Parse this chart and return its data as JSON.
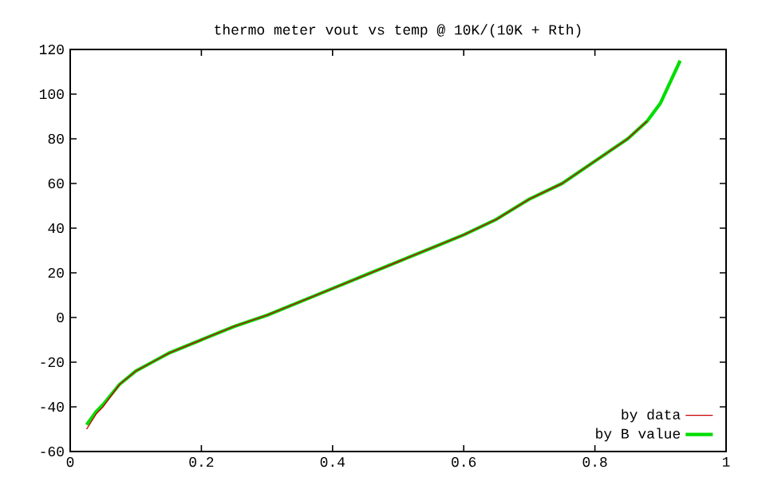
{
  "chart_data": {
    "type": "line",
    "title": "thermo meter vout vs temp @ 10K/(10K + Rth)",
    "xlim": [
      0,
      1
    ],
    "ylim": [
      -60,
      120
    ],
    "xticks": [
      0,
      0.2,
      0.4,
      0.6,
      0.8,
      1
    ],
    "yticks": [
      -60,
      -40,
      -20,
      0,
      20,
      40,
      60,
      80,
      100,
      120
    ],
    "legend": "bottom right",
    "line_style": "solid",
    "series": [
      {
        "name": "by data",
        "color": "#c80000",
        "x": [
          0.025,
          0.04,
          0.05,
          0.075,
          0.1,
          0.125,
          0.15,
          0.2,
          0.25,
          0.3,
          0.35,
          0.4,
          0.45,
          0.5,
          0.55,
          0.6,
          0.65,
          0.7,
          0.75,
          0.8,
          0.85,
          0.88
        ],
        "values": [
          -50,
          -43,
          -40,
          -30,
          -24,
          -20,
          -16,
          -10,
          -4,
          1,
          7,
          13,
          19,
          25,
          31,
          37,
          44,
          53,
          60,
          70,
          80,
          88
        ]
      },
      {
        "name": "by B value",
        "color": "#00dd00",
        "x": [
          0.025,
          0.04,
          0.05,
          0.075,
          0.1,
          0.125,
          0.15,
          0.2,
          0.25,
          0.3,
          0.35,
          0.4,
          0.45,
          0.5,
          0.55,
          0.6,
          0.65,
          0.7,
          0.75,
          0.8,
          0.85,
          0.88,
          0.9,
          0.93
        ],
        "values": [
          -48,
          -42,
          -39,
          -30,
          -24,
          -20,
          -16,
          -10,
          -4,
          1,
          7,
          13,
          19,
          25,
          31,
          37,
          44,
          53,
          60,
          70,
          80,
          88,
          96,
          115
        ]
      }
    ]
  }
}
